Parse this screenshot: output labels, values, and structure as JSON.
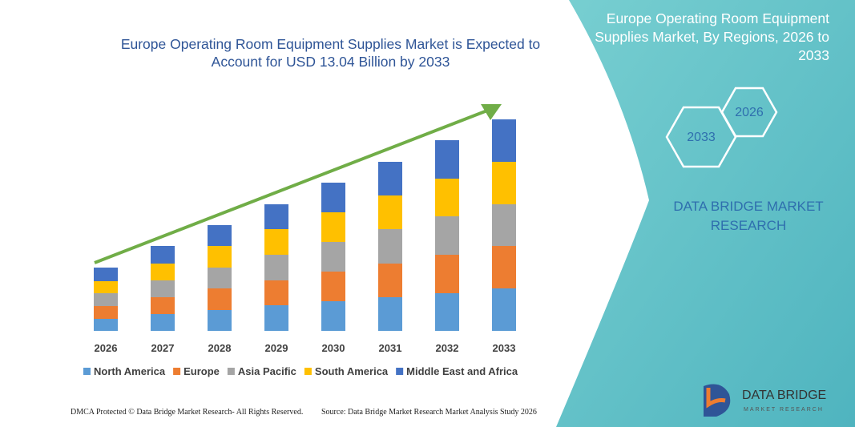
{
  "chart_data": {
    "type": "bar",
    "stacked": true,
    "title": "Europe Operating Room Equipment Supplies Market is Expected to Account for USD 13.04 Billion by 2033",
    "categories": [
      "2026",
      "2027",
      "2028",
      "2029",
      "2030",
      "2031",
      "2032",
      "2033"
    ],
    "series": [
      {
        "name": "North America",
        "color": "#5b9bd5",
        "values": [
          15,
          21,
          26,
          32,
          37,
          42,
          47,
          53
        ]
      },
      {
        "name": "Europe",
        "color": "#ed7d31",
        "values": [
          16,
          21,
          27,
          31,
          37,
          42,
          48,
          53
        ]
      },
      {
        "name": "Asia Pacific",
        "color": "#a5a5a5",
        "values": [
          16,
          21,
          26,
          32,
          37,
          43,
          48,
          52
        ]
      },
      {
        "name": "South America",
        "color": "#ffc000",
        "values": [
          15,
          21,
          27,
          32,
          37,
          42,
          47,
          53
        ]
      },
      {
        "name": "Middle East and Africa",
        "color": "#4472c4",
        "values": [
          17,
          22,
          26,
          31,
          37,
          42,
          48,
          53
        ]
      }
    ]
  },
  "side_panel": {
    "title": "Europe Operating Room Equipment Supplies Market, By Regions, 2026 to 2033",
    "hexagons": [
      "2026",
      "2033"
    ],
    "brand": "DATA BRIDGE MARKET RESEARCH"
  },
  "logo": {
    "name": "DATA BRIDGE",
    "tagline": "MARKET RESEARCH"
  },
  "footer": {
    "left": "DMCA Protected © Data Bridge Market Research- All Rights Reserved.",
    "right": "Source: Data Bridge Market Research Market Analysis Study 2026"
  }
}
